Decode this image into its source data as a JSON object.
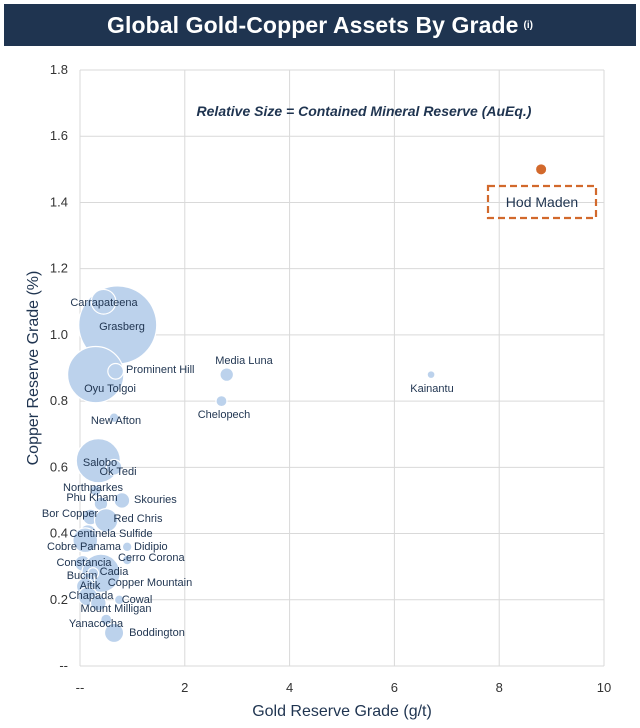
{
  "header": {
    "title": "Global Gold-Copper Assets By Grade",
    "note": "(i)"
  },
  "colors": {
    "title_bg": "#1f3450",
    "bubble": "#bcd2ec",
    "highlight": "#d2692c",
    "text": "#1f3450"
  },
  "chart_data": {
    "type": "scatter",
    "title": "Global Gold-Copper Assets By Grade",
    "annotation": "Relative Size = Contained Mineral Reserve (AuEq.)",
    "xlabel": "Gold Reserve Grade (g/t)",
    "ylabel": "Copper Reserve Grade (%)",
    "xlim": [
      0,
      10
    ],
    "ylim": [
      0,
      1.8
    ],
    "x_ticks": [
      "--",
      "2",
      "4",
      "6",
      "8",
      "10"
    ],
    "y_ticks": [
      "--",
      "0.2",
      "0.4",
      "0.6",
      "0.8",
      "1.0",
      "1.2",
      "1.4",
      "1.6",
      "1.8"
    ],
    "grid": true,
    "series": [
      {
        "points": [
          {
            "name": "Grasberg",
            "x": 0.72,
            "y": 1.03,
            "size": 100
          },
          {
            "name": "Carrapateena",
            "x": 0.45,
            "y": 1.1,
            "size": 10
          },
          {
            "name": "Oyu Tolgoi",
            "x": 0.3,
            "y": 0.88,
            "size": 52
          },
          {
            "name": "Prominent Hill",
            "x": 0.68,
            "y": 0.89,
            "size": 4
          },
          {
            "name": "Media Luna",
            "x": 2.8,
            "y": 0.88,
            "size": 3
          },
          {
            "name": "Chelopech",
            "x": 2.7,
            "y": 0.8,
            "size": 2
          },
          {
            "name": "Kainantu",
            "x": 6.7,
            "y": 0.88,
            "size": 1
          },
          {
            "name": "New Afton",
            "x": 0.65,
            "y": 0.75,
            "size": 1.5
          },
          {
            "name": "Salobo",
            "x": 0.35,
            "y": 0.62,
            "size": 32
          },
          {
            "name": "Ok Tedi",
            "x": 0.65,
            "y": 0.6,
            "size": 4
          },
          {
            "name": "Northparkes",
            "x": 0.3,
            "y": 0.53,
            "size": 2
          },
          {
            "name": "Phu Kham",
            "x": 0.4,
            "y": 0.49,
            "size": 3
          },
          {
            "name": "Skouries",
            "x": 0.8,
            "y": 0.5,
            "size": 4
          },
          {
            "name": "Bor Copper",
            "x": 0.2,
            "y": 0.45,
            "size": 4
          },
          {
            "name": "Red Chris",
            "x": 0.5,
            "y": 0.44,
            "size": 9
          },
          {
            "name": "Centinela Sulfide",
            "x": 0.15,
            "y": 0.4,
            "size": 5
          },
          {
            "name": "Cobre Panama",
            "x": 0.1,
            "y": 0.38,
            "size": 10
          },
          {
            "name": "Didipio",
            "x": 0.9,
            "y": 0.36,
            "size": 1.5
          },
          {
            "name": "Cerro Corona",
            "x": 0.9,
            "y": 0.32,
            "size": 1.5
          },
          {
            "name": "Constancia",
            "x": 0.05,
            "y": 0.31,
            "size": 4
          },
          {
            "name": "Cadia",
            "x": 0.4,
            "y": 0.28,
            "size": 24
          },
          {
            "name": "Bucim",
            "x": 0.25,
            "y": 0.28,
            "size": 2
          },
          {
            "name": "Copper Mountain",
            "x": 0.15,
            "y": 0.26,
            "size": 3
          },
          {
            "name": "Aitik",
            "x": 0.1,
            "y": 0.24,
            "size": 5
          },
          {
            "name": "Chapada",
            "x": 0.15,
            "y": 0.21,
            "size": 6
          },
          {
            "name": "Cowal",
            "x": 0.75,
            "y": 0.2,
            "size": 1.5
          },
          {
            "name": "Mount Milligan",
            "x": 0.35,
            "y": 0.19,
            "size": 4
          },
          {
            "name": "Yanacocha",
            "x": 0.5,
            "y": 0.14,
            "size": 2
          },
          {
            "name": "Boddington",
            "x": 0.65,
            "y": 0.1,
            "size": 6
          }
        ]
      },
      {
        "points": [
          {
            "name": "Hod Maden",
            "x": 8.8,
            "y": 1.5,
            "size": 1.5,
            "highlight": true
          }
        ]
      }
    ]
  }
}
